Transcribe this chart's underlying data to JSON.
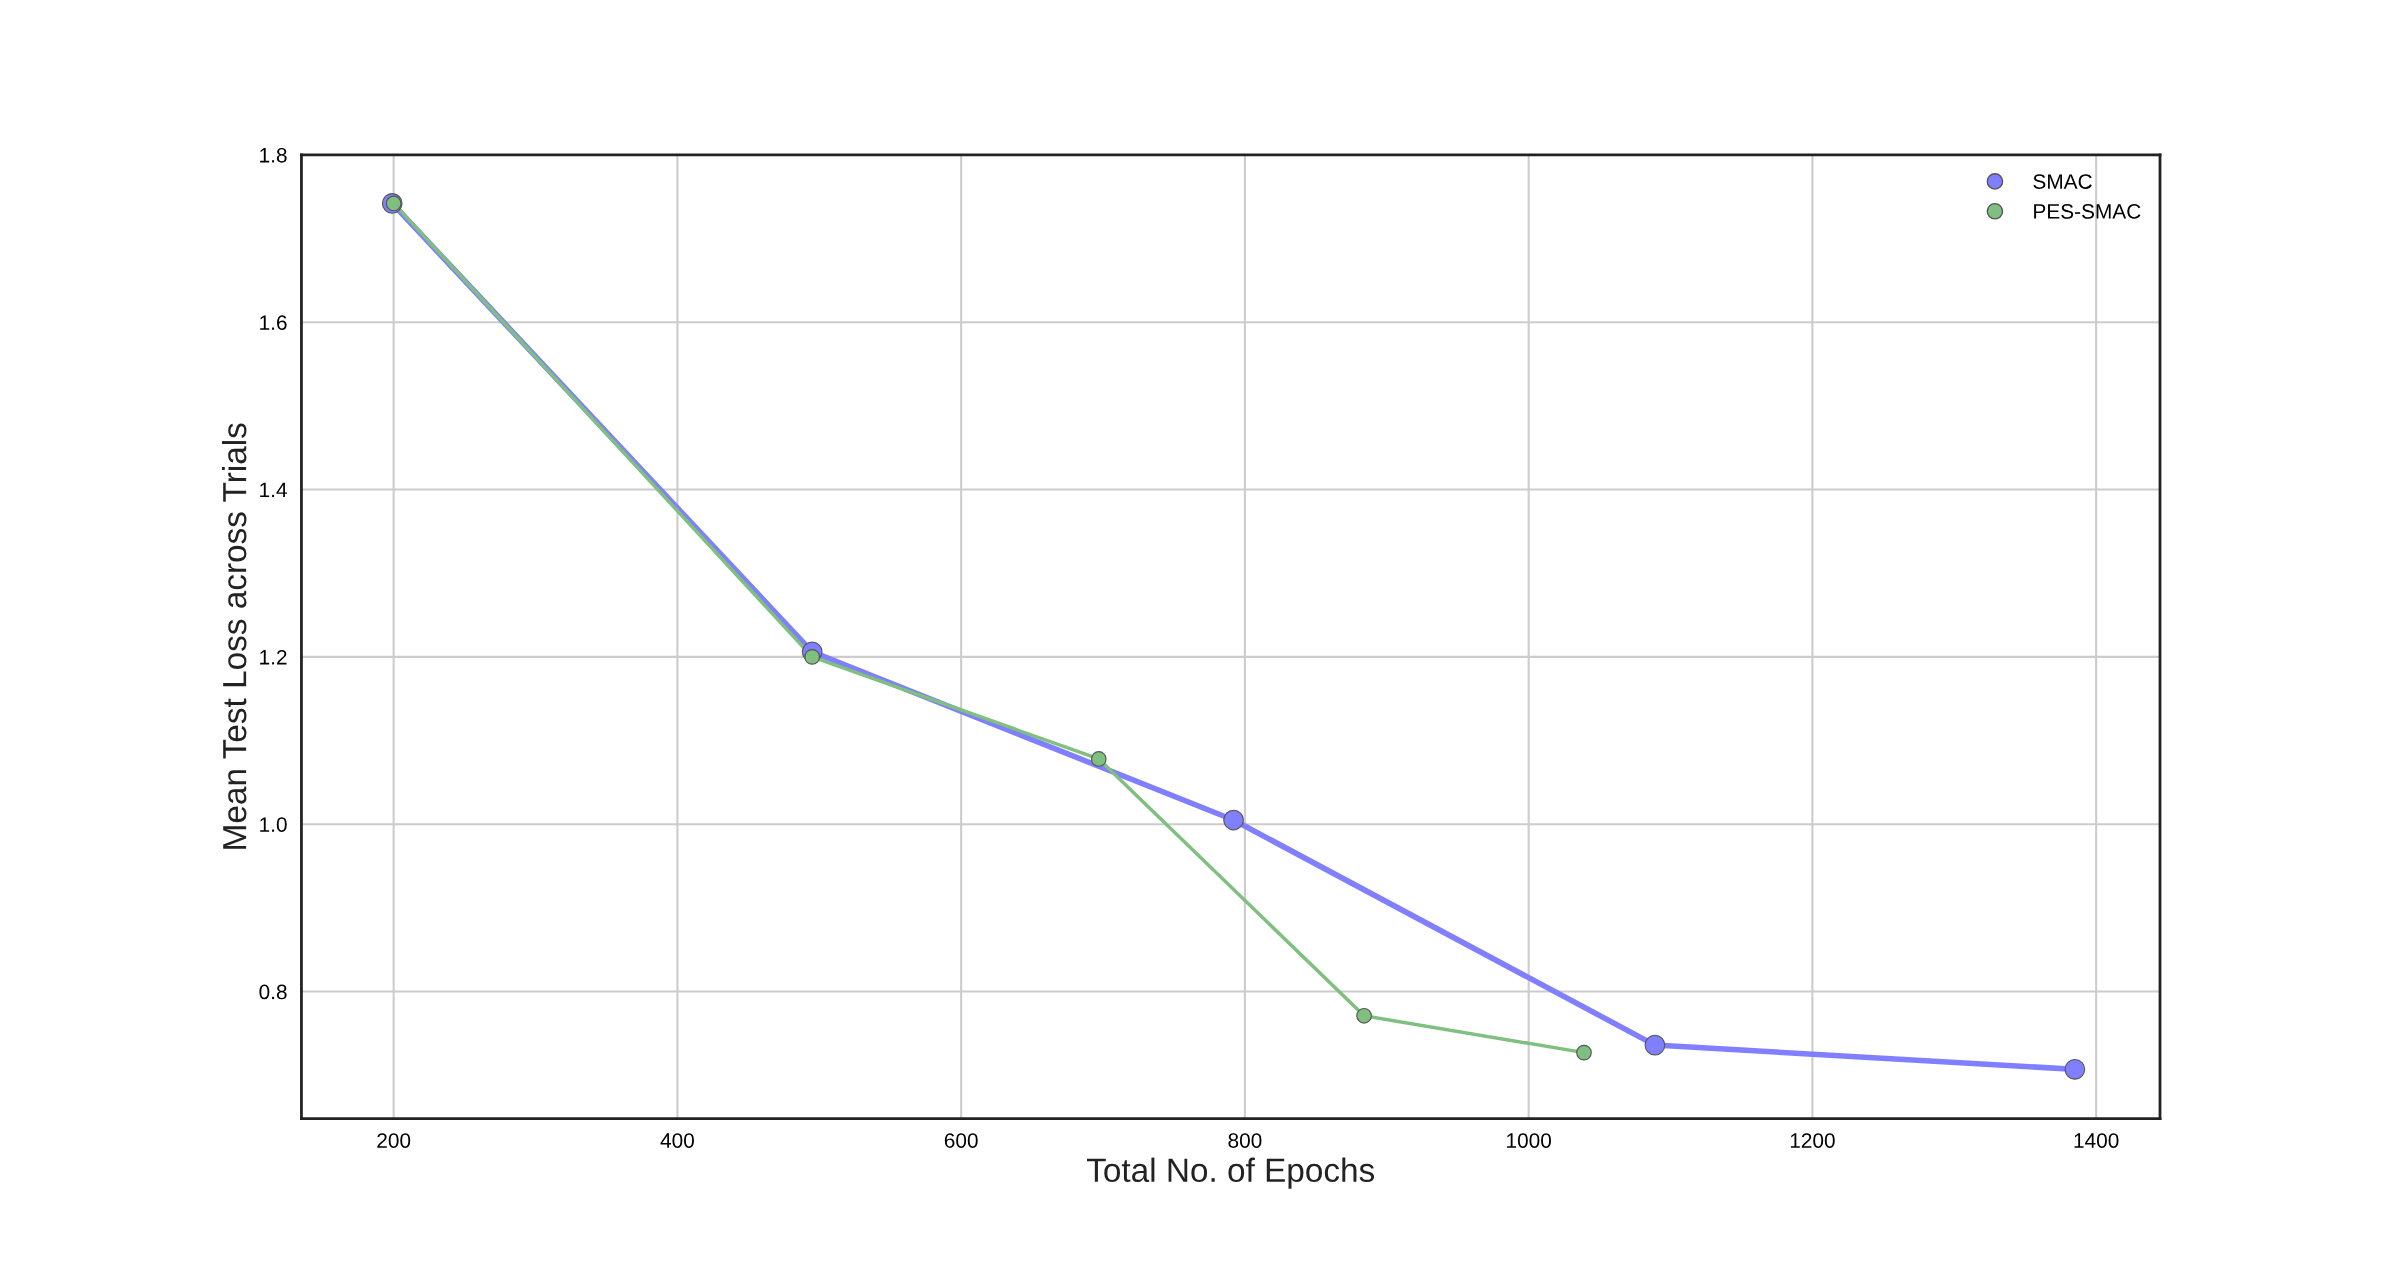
{
  "chart_data": {
    "type": "line",
    "xlabel": "Total No. of Epochs",
    "ylabel": "Mean Test Loss across Trials",
    "series": [
      {
        "name": "SMAC",
        "color": "#7f7fff",
        "x": [
          199,
          495,
          792,
          1089,
          1385
        ],
        "values": [
          1.742,
          1.206,
          1.005,
          0.736,
          0.707
        ]
      },
      {
        "name": "PES-SMAC",
        "color": "#7fbf7f",
        "x": [
          200,
          495,
          697,
          884,
          1039
        ],
        "values": [
          1.742,
          1.2,
          1.078,
          0.771,
          0.727
        ]
      }
    ],
    "xlim": [
      135,
      1445
    ],
    "ylim": [
      0.648,
      1.8
    ],
    "xticks": [
      200,
      400,
      600,
      800,
      1000,
      1200,
      1400
    ],
    "yticks": [
      0.8,
      {
        "value": 1,
        "label": "1.0"
      },
      1.2,
      1.4,
      1.6,
      1.8
    ],
    "grid": true,
    "legend": "top right",
    "marker": "circle",
    "line_style": "solid"
  }
}
